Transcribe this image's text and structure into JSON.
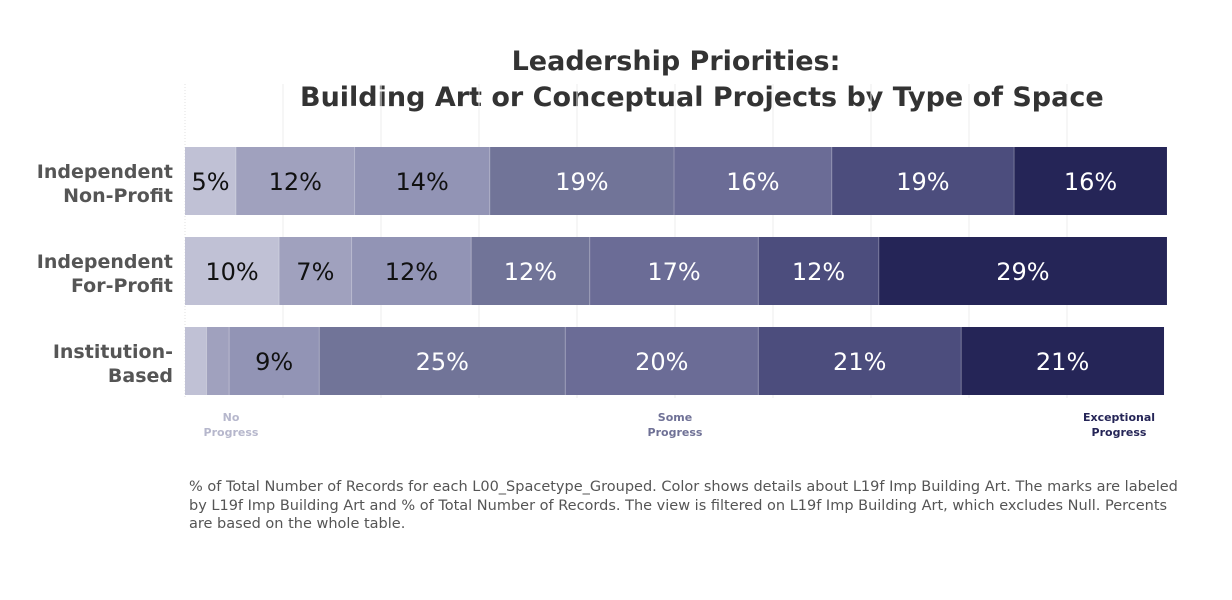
{
  "chart_data": {
    "type": "bar",
    "orientation": "horizontal",
    "stacked": "100%",
    "title": [
      "Leadership Priorities:",
      "Building Art or Conceptual Projects by Type of Space"
    ],
    "categories": [
      [
        "Independent",
        "Non-Profit"
      ],
      [
        "Independent",
        "For-Profit"
      ],
      [
        "Institution-",
        "Based"
      ]
    ],
    "segments": [
      {
        "values": [
          5.2,
          12.1,
          13.8,
          18.8,
          16.1,
          18.6,
          15.6
        ],
        "labels": [
          "5%",
          "12%",
          "14%",
          "19%",
          "16%",
          "19%",
          "16%"
        ]
      },
      {
        "values": [
          9.6,
          7.4,
          12.2,
          12.1,
          17.2,
          12.3,
          29.4
        ],
        "labels": [
          "10%",
          "7%",
          "12%",
          "12%",
          "17%",
          "12%",
          "29%"
        ]
      },
      {
        "values": [
          2.2,
          2.3,
          9.2,
          25.1,
          19.7,
          20.7,
          20.7
        ],
        "labels": [
          "",
          "",
          "9%",
          "25%",
          "20%",
          "21%",
          "21%"
        ]
      }
    ],
    "xlim": [
      0,
      100
    ],
    "colors": [
      "#c0c1d5",
      "#a0a1be",
      "#9294b5",
      "#717498",
      "#6b6c96",
      "#4c4d7d",
      "#252557"
    ],
    "label_dark_text_levels": 3,
    "legend": [
      {
        "line1": "No",
        "line2": "Progress",
        "color": "#b6b7cc"
      },
      {
        "line1": "Some",
        "line2": "Progress",
        "color": "#6f7196"
      },
      {
        "line1": "Exceptional",
        "line2": "Progress",
        "color": "#252557"
      }
    ],
    "grid": true
  },
  "caption": "% of Total Number of Records for each L00_Spacetype_Grouped.  Color shows details about L19f Imp Building Art.  The marks are labeled by L19f Imp Building Art and % of Total Number of Records. The view is filtered on L19f Imp Building Art, which excludes Null. Percents are based on the whole table."
}
